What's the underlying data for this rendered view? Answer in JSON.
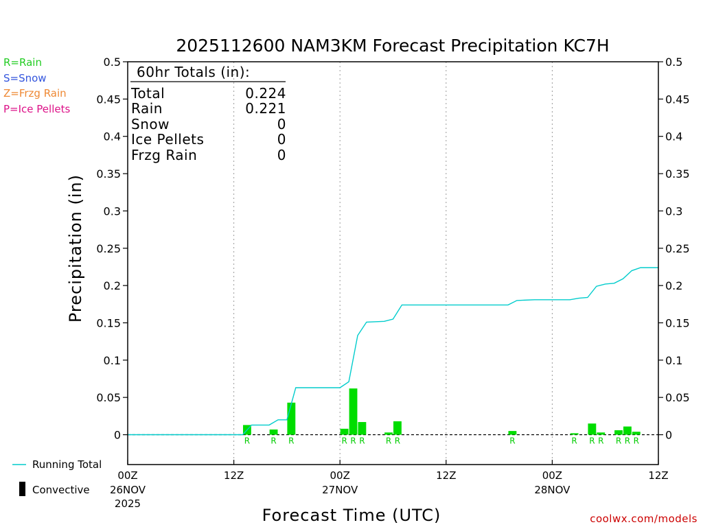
{
  "chart_data": {
    "type": "bar",
    "title": "2025112600 NAM3KM Forecast Precipitation KC7H",
    "ylabel": "Precipitation (in)",
    "xlabel": "Forecast Time (UTC)",
    "ylim": [
      -0.04,
      0.5
    ],
    "yticks": [
      "0.5",
      "0.45",
      "0.4",
      "0.35",
      "0.3",
      "0.25",
      "0.2",
      "0.15",
      "0.1",
      "0.05",
      "0"
    ],
    "ytick_values": [
      0.5,
      0.45,
      0.4,
      0.35,
      0.3,
      0.25,
      0.2,
      0.15,
      0.1,
      0.05,
      0
    ],
    "xlim_hours": [
      0,
      60
    ],
    "xticks": [
      {
        "hour": 0,
        "line1": "00Z",
        "line2": "26NOV",
        "line3": "2025"
      },
      {
        "hour": 12,
        "line1": "12Z",
        "line2": "",
        "line3": ""
      },
      {
        "hour": 24,
        "line1": "00Z",
        "line2": "27NOV",
        "line3": ""
      },
      {
        "hour": 36,
        "line1": "12Z",
        "line2": "",
        "line3": ""
      },
      {
        "hour": 48,
        "line1": "00Z",
        "line2": "28NOV",
        "line3": ""
      },
      {
        "hour": 60,
        "line1": "12Z",
        "line2": "",
        "line3": ""
      }
    ],
    "bars": [
      {
        "hour": 14,
        "value": 0.013,
        "ptype": "R"
      },
      {
        "hour": 17,
        "value": 0.007,
        "ptype": "R"
      },
      {
        "hour": 19,
        "value": 0.043,
        "ptype": "R"
      },
      {
        "hour": 25,
        "value": 0.008,
        "ptype": "R"
      },
      {
        "hour": 26,
        "value": 0.062,
        "ptype": "R"
      },
      {
        "hour": 27,
        "value": 0.017,
        "ptype": "R"
      },
      {
        "hour": 30,
        "value": 0.003,
        "ptype": "R"
      },
      {
        "hour": 31,
        "value": 0.018,
        "ptype": "R"
      },
      {
        "hour": 44,
        "value": 0.005,
        "ptype": "R"
      },
      {
        "hour": 51,
        "value": 0.002,
        "ptype": "R"
      },
      {
        "hour": 53,
        "value": 0.015,
        "ptype": "R"
      },
      {
        "hour": 54,
        "value": 0.003,
        "ptype": "R"
      },
      {
        "hour": 56,
        "value": 0.006,
        "ptype": "R"
      },
      {
        "hour": 57,
        "value": 0.011,
        "ptype": "R"
      },
      {
        "hour": 58,
        "value": 0.004,
        "ptype": "R"
      }
    ],
    "running_total": [
      [
        0,
        0
      ],
      [
        13,
        0
      ],
      [
        14,
        0.013
      ],
      [
        16,
        0.013
      ],
      [
        17,
        0.02
      ],
      [
        18,
        0.02
      ],
      [
        19,
        0.063
      ],
      [
        24,
        0.063
      ],
      [
        25,
        0.071
      ],
      [
        26,
        0.133
      ],
      [
        27,
        0.151
      ],
      [
        29,
        0.152
      ],
      [
        30,
        0.155
      ],
      [
        31,
        0.174
      ],
      [
        43,
        0.174
      ],
      [
        44,
        0.18
      ],
      [
        46,
        0.181
      ],
      [
        50,
        0.181
      ],
      [
        51,
        0.183
      ],
      [
        52,
        0.184
      ],
      [
        53,
        0.199
      ],
      [
        54,
        0.202
      ],
      [
        55,
        0.203
      ],
      [
        56,
        0.209
      ],
      [
        57,
        0.22
      ],
      [
        58,
        0.224
      ],
      [
        60,
        0.224
      ]
    ],
    "totals": {
      "header": "60hr Totals (in):",
      "rows": [
        {
          "label": "Total",
          "value": "0.224"
        },
        {
          "label": "Rain",
          "value": "0.221"
        },
        {
          "label": "Snow",
          "value": "0"
        },
        {
          "label": "Ice Pellets",
          "value": "0"
        },
        {
          "label": "Frzg Rain",
          "value": "0"
        }
      ]
    },
    "ptype_legend": [
      {
        "text": "R=Rain",
        "color": "#22cc22"
      },
      {
        "text": "S=Snow",
        "color": "#3355dd"
      },
      {
        "text": "Z=Frzg Rain",
        "color": "#ee8833"
      },
      {
        "text": "P=Ice Pellets",
        "color": "#dd1188"
      }
    ],
    "series_legend": [
      {
        "text": "Running Total",
        "color": "#00cccc"
      },
      {
        "text": "Convective",
        "color": "#000000"
      }
    ],
    "colors": {
      "bar": "#00dd00",
      "running_total": "#00cccc",
      "ptype_label": "#00cc00"
    },
    "credit": "coolwx.com/models"
  }
}
